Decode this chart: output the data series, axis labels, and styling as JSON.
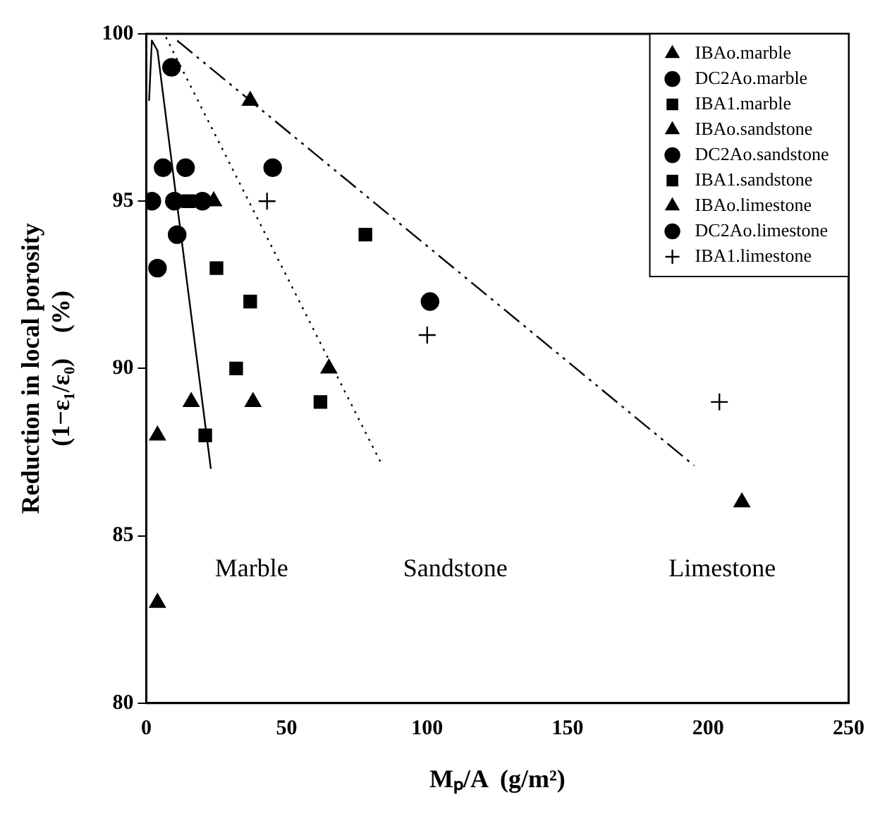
{
  "chart_data": {
    "type": "scatter",
    "xlabel": "Mₚ/A  (g/m²)",
    "ylabel": [
      "Reduction in local porosity",
      "(1−ε₁/ε₀)    (%)"
    ],
    "xlim": [
      0,
      250
    ],
    "xticks": [
      0,
      50,
      100,
      150,
      200,
      250
    ],
    "ylim": [
      80,
      100
    ],
    "yticks": [
      80,
      85,
      90,
      95,
      100
    ],
    "grid": false,
    "legend": "top right",
    "series": [
      {
        "name": "IBAo.marble",
        "color": "#000000",
        "marker": "triangle",
        "x": [
          4,
          4
        ],
        "values": [
          88,
          83
        ]
      },
      {
        "name": "DC2Ao.marble",
        "color": "#000000",
        "marker": "circle",
        "x": [
          9,
          6,
          10,
          2
        ],
        "values": [
          99,
          96,
          95,
          95
        ]
      },
      {
        "name": "IBA1.marble",
        "color": "#000000",
        "marker": "square",
        "x": [
          21
        ],
        "values": [
          88
        ]
      },
      {
        "name": "IBAo.sandstone",
        "color": "#000000",
        "marker": "triangle",
        "x": [
          24,
          65,
          38,
          212
        ],
        "values": [
          95,
          90,
          89,
          86
        ]
      },
      {
        "name": "DC2Ao.sandstone",
        "color": "#000000",
        "marker": "circle",
        "x": [
          14,
          45,
          11,
          4
        ],
        "values": [
          96,
          96,
          94,
          93
        ]
      },
      {
        "name": "IBA1.sandstone",
        "color": "#000000",
        "marker": "square",
        "x": [
          15,
          78,
          25,
          37,
          32,
          62
        ],
        "values": [
          95,
          94,
          93,
          92,
          90,
          89
        ]
      },
      {
        "name": "IBAo.limestone",
        "color": "#000000",
        "marker": "triangle",
        "x": [
          37,
          16
        ],
        "values": [
          98,
          89
        ]
      },
      {
        "name": "DC2Ao.limestone",
        "color": "#000000",
        "marker": "circle",
        "x": [
          20,
          101
        ],
        "values": [
          95,
          92
        ]
      },
      {
        "name": "IBA1.limestone",
        "color": "#000000",
        "marker": "cross",
        "x": [
          43,
          100,
          204
        ],
        "values": [
          95,
          91,
          89
        ]
      },
      {
        "type": "line",
        "color": "#000000",
        "line_style": "solid",
        "marker": "none",
        "x": [
          1,
          2,
          4,
          23
        ],
        "values": [
          98,
          99.8,
          99.5,
          87
        ]
      },
      {
        "type": "line",
        "color": "#000000",
        "line_style": "dotted",
        "marker": "none",
        "x": [
          7,
          84
        ],
        "values": [
          99.9,
          87.1
        ]
      },
      {
        "type": "line",
        "color": "#000000",
        "line_style": "dashdot",
        "marker": "none",
        "x": [
          11,
          195
        ],
        "values": [
          99.8,
          87.1
        ]
      }
    ],
    "annotations": [
      "Marble",
      "Sandstone",
      "Limestone"
    ]
  }
}
